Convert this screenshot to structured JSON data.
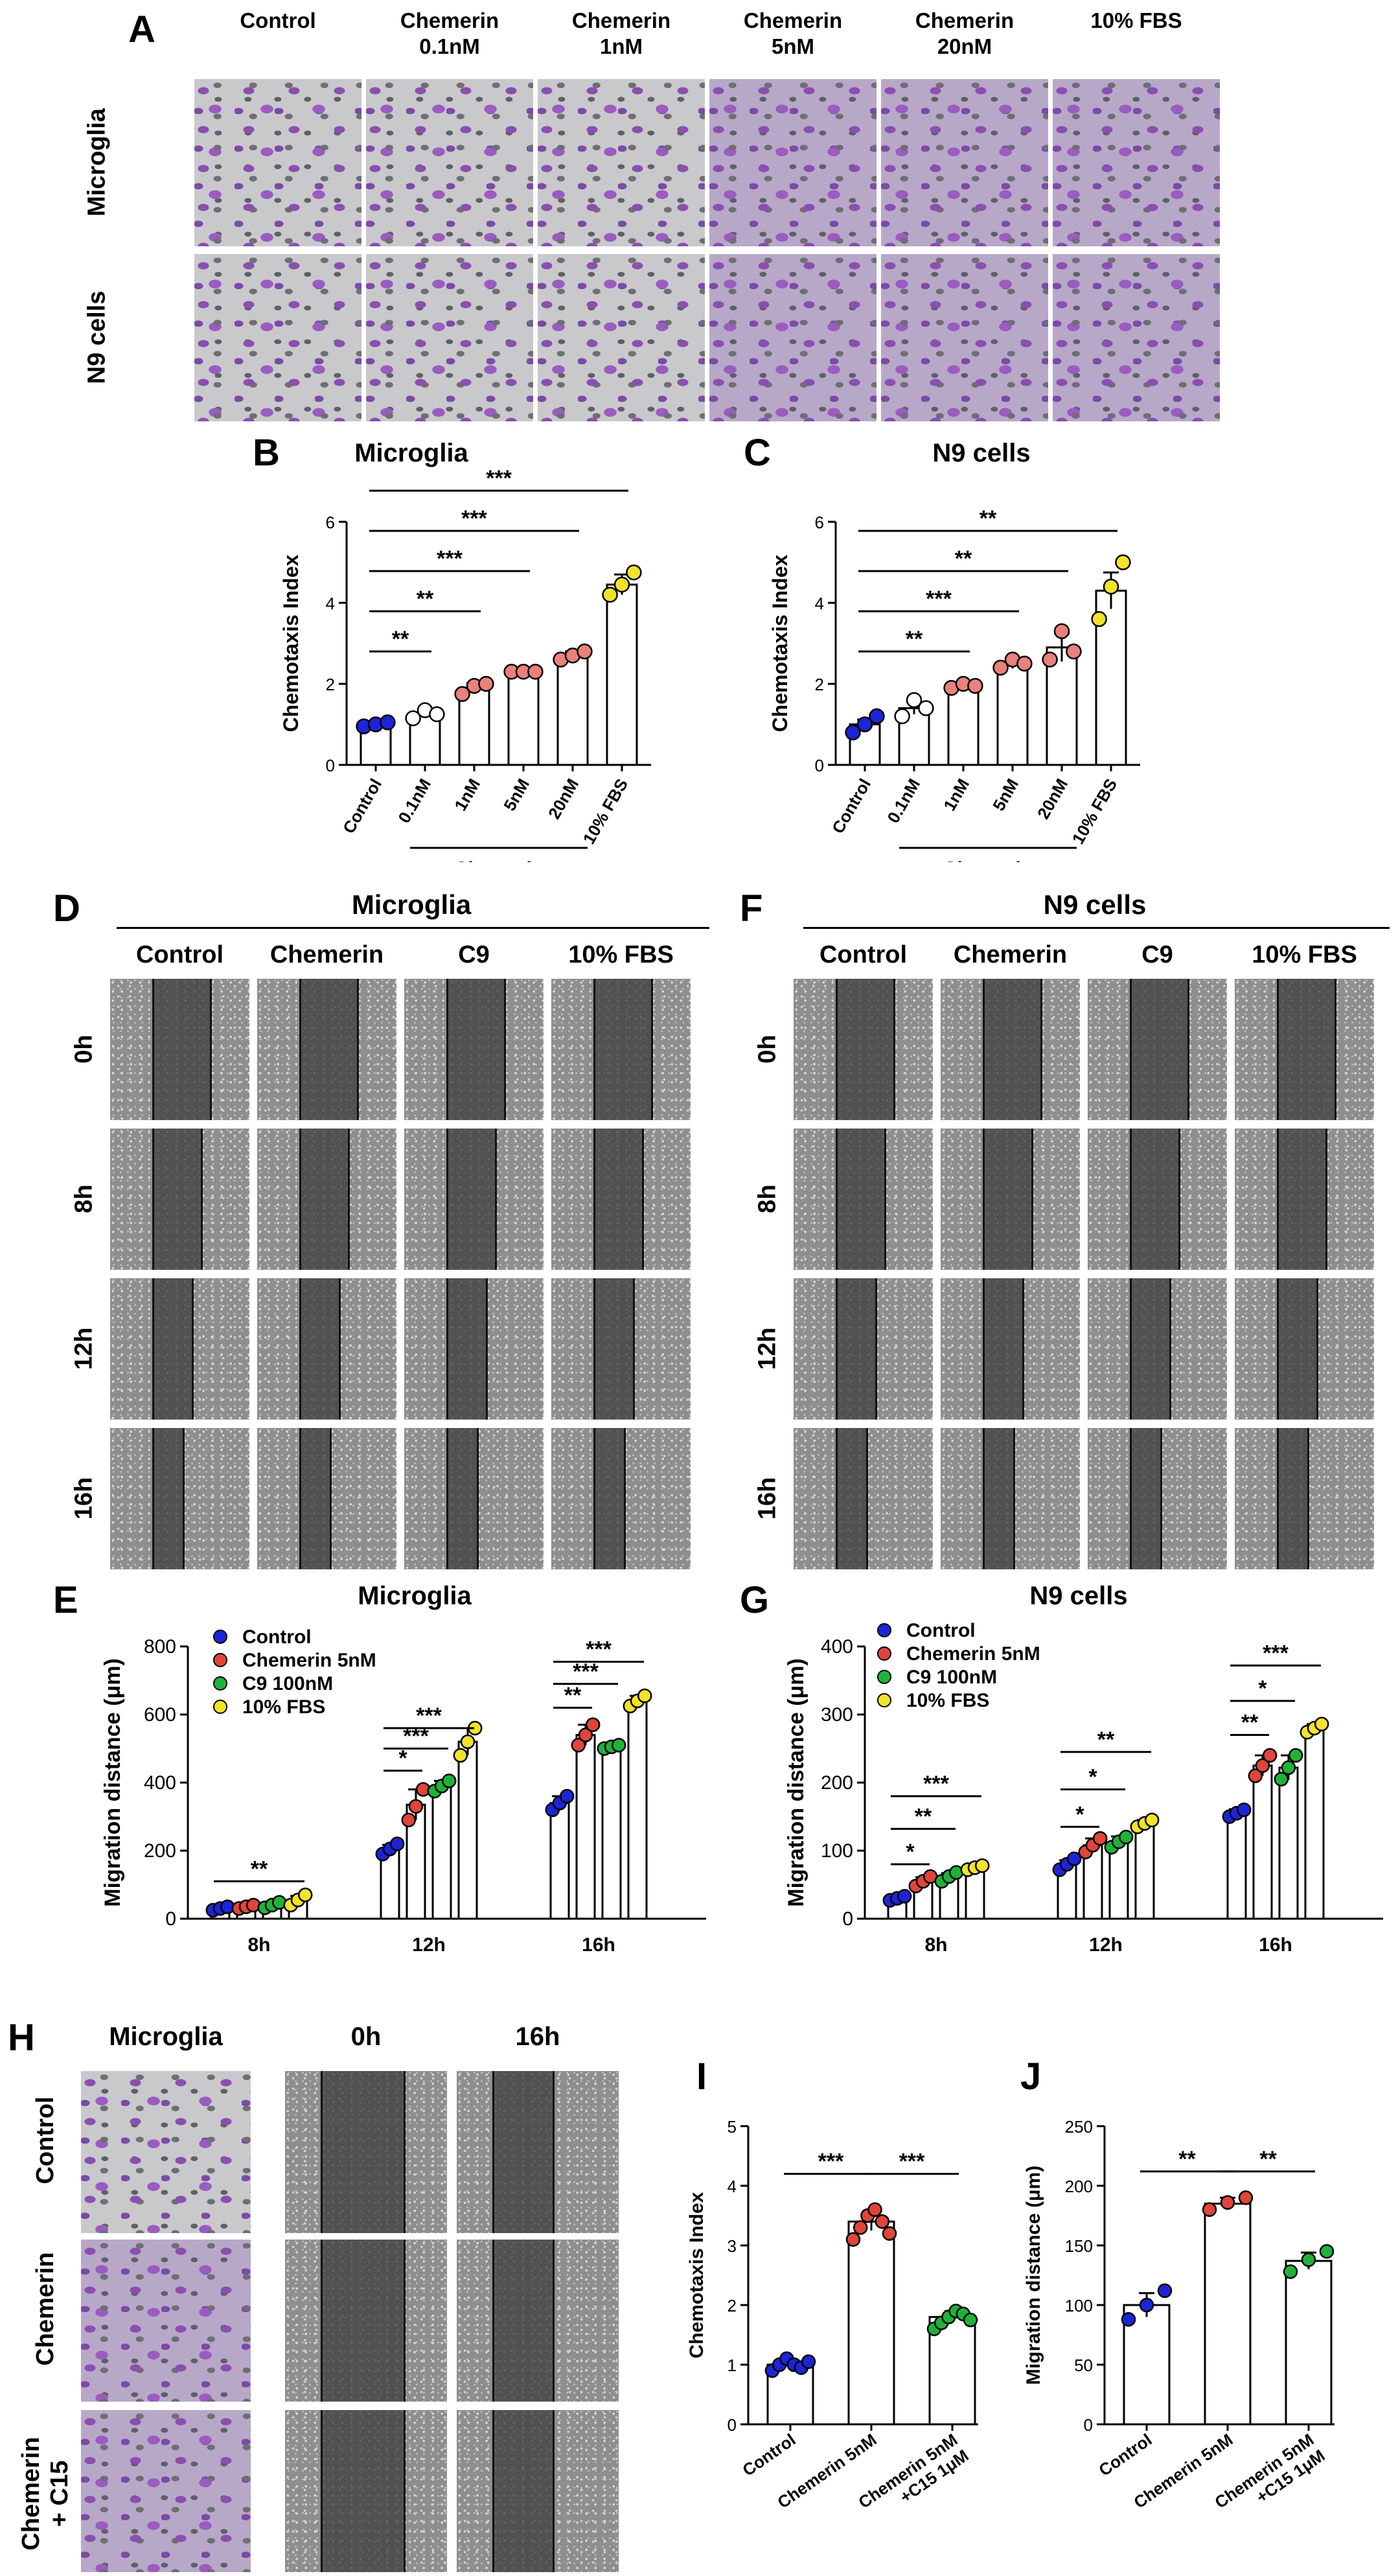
{
  "panels": {
    "A": {
      "letter": "A",
      "columns": [
        "Control",
        "Chemerin\n0.1nM",
        "Chemerin\n1nM",
        "Chemerin\n5nM",
        "Chemerin\n20nM",
        "10% FBS"
      ],
      "rows": [
        "Microglia",
        "N9 cells"
      ]
    },
    "B": {
      "letter": "B"
    },
    "C": {
      "letter": "C"
    },
    "D": {
      "letter": "D",
      "title": "Microglia",
      "columns": [
        "Control",
        "Chemerin",
        "C9",
        "10% FBS"
      ],
      "rows": [
        "0h",
        "8h",
        "12h",
        "16h"
      ]
    },
    "E": {
      "letter": "E"
    },
    "F": {
      "letter": "F",
      "title": "N9 cells",
      "columns": [
        "Control",
        "Chemerin",
        "C9",
        "10% FBS"
      ],
      "rows": [
        "0h",
        "8h",
        "12h",
        "16h"
      ]
    },
    "G": {
      "letter": "G"
    },
    "H": {
      "letter": "H",
      "columns": [
        "Microglia",
        "0h",
        "16h"
      ],
      "rows": [
        "Control",
        "Chemerin",
        "Chemerin\n+ C15"
      ]
    },
    "I": {
      "letter": "I"
    },
    "J": {
      "letter": "J"
    }
  },
  "chart_data": [
    {
      "id": "B",
      "type": "bar",
      "title": "Microglia",
      "xlabel": "",
      "ylabel": "Chemotaxis Index",
      "ylim": [
        0,
        6
      ],
      "yticks": [
        "0",
        "2",
        "4",
        "6"
      ],
      "categories": [
        "Control",
        "0.1nM",
        "1nM",
        "5nM",
        "20nM",
        "10% FBS"
      ],
      "group_label": "Chemerin",
      "values": [
        1.0,
        1.25,
        1.9,
        2.3,
        2.7,
        4.45
      ],
      "errors": [
        0.05,
        0.08,
        0.12,
        0.05,
        0.1,
        0.25
      ],
      "colors": [
        "#1c24d8",
        "#ffffff",
        "#e8827a",
        "#e8827a",
        "#e8827a",
        "#f2e32a"
      ],
      "points": [
        [
          0.95,
          1.0,
          1.05
        ],
        [
          1.15,
          1.35,
          1.25
        ],
        [
          1.75,
          1.95,
          2.0
        ],
        [
          2.3,
          2.3,
          2.3
        ],
        [
          2.6,
          2.7,
          2.8
        ],
        [
          4.2,
          4.45,
          4.75
        ]
      ],
      "significance": [
        {
          "from": 0,
          "to": 1,
          "label": "**"
        },
        {
          "from": 0,
          "to": 2,
          "label": "**"
        },
        {
          "from": 0,
          "to": 3,
          "label": "***"
        },
        {
          "from": 0,
          "to": 4,
          "label": "***"
        },
        {
          "from": 0,
          "to": 5,
          "label": "***"
        }
      ]
    },
    {
      "id": "C",
      "type": "bar",
      "title": "N9 cells",
      "xlabel": "",
      "ylabel": "Chemotaxis Index",
      "ylim": [
        0,
        6
      ],
      "yticks": [
        "0",
        "2",
        "4",
        "6"
      ],
      "categories": [
        "Control",
        "0.1nM",
        "1nM",
        "5nM",
        "20nM",
        "10% FBS"
      ],
      "group_label": "Chemerin",
      "values": [
        1.0,
        1.4,
        1.95,
        2.5,
        2.9,
        4.3
      ],
      "errors": [
        0.12,
        0.15,
        0.06,
        0.12,
        0.35,
        0.45
      ],
      "colors": [
        "#1c24d8",
        "#ffffff",
        "#e8827a",
        "#e8827a",
        "#e8827a",
        "#f2e32a"
      ],
      "points": [
        [
          0.8,
          1.0,
          1.2
        ],
        [
          1.2,
          1.6,
          1.4
        ],
        [
          1.9,
          2.0,
          1.95
        ],
        [
          2.4,
          2.6,
          2.5
        ],
        [
          2.6,
          3.3,
          2.8
        ],
        [
          3.6,
          4.4,
          5.0
        ]
      ],
      "significance": [
        {
          "from": 0,
          "to": 2,
          "label": "**"
        },
        {
          "from": 0,
          "to": 3,
          "label": "***"
        },
        {
          "from": 0,
          "to": 4,
          "label": "**"
        },
        {
          "from": 0,
          "to": 5,
          "label": "**"
        }
      ]
    },
    {
      "id": "E",
      "type": "bar",
      "title": "Microglia",
      "xlabel": "",
      "ylabel": "Migration distance (μm)",
      "ylim": [
        0,
        800
      ],
      "yticks": [
        "0",
        "200",
        "400",
        "600",
        "800"
      ],
      "categories": [
        "8h",
        "12h",
        "16h"
      ],
      "legend": [
        "Control",
        "Chemerin 5nM",
        "C9 100nM",
        "10% FBS"
      ],
      "legend_colors": [
        "#1c24d8",
        "#e0453a",
        "#1fb23a",
        "#f2e32a"
      ],
      "series": [
        {
          "name": "Control",
          "values": [
            30,
            205,
            340
          ],
          "errors": [
            5,
            12,
            20
          ],
          "points": [
            [
              25,
              30,
              35
            ],
            [
              190,
              205,
              220
            ],
            [
              320,
              340,
              360
            ]
          ]
        },
        {
          "name": "Chemerin 5nM",
          "values": [
            35,
            335,
            540
          ],
          "errors": [
            6,
            45,
            30
          ],
          "points": [
            [
              30,
              35,
              40
            ],
            [
              290,
              330,
              380
            ],
            [
              510,
              540,
              570
            ]
          ]
        },
        {
          "name": "C9 100nM",
          "values": [
            40,
            390,
            505
          ],
          "errors": [
            8,
            15,
            8
          ],
          "points": [
            [
              32,
              40,
              48
            ],
            [
              375,
              390,
              405
            ],
            [
              500,
              505,
              510
            ]
          ]
        },
        {
          "name": "10% FBS",
          "values": [
            55,
            520,
            640
          ],
          "errors": [
            12,
            40,
            15
          ],
          "points": [
            [
              40,
              55,
              70
            ],
            [
              480,
              520,
              560
            ],
            [
              625,
              640,
              655
            ]
          ]
        }
      ],
      "significance": [
        {
          "group": 0,
          "from": 0,
          "to": 3,
          "label": "**"
        },
        {
          "group": 1,
          "from": 0,
          "to": 1,
          "label": "*"
        },
        {
          "group": 1,
          "from": 0,
          "to": 2,
          "label": "***"
        },
        {
          "group": 1,
          "from": 0,
          "to": 3,
          "label": "***"
        },
        {
          "group": 2,
          "from": 0,
          "to": 1,
          "label": "**"
        },
        {
          "group": 2,
          "from": 0,
          "to": 2,
          "label": "***"
        },
        {
          "group": 2,
          "from": 0,
          "to": 3,
          "label": "***"
        }
      ]
    },
    {
      "id": "G",
      "type": "bar",
      "title": "N9 cells",
      "xlabel": "",
      "ylabel": "Migration distance (μm)",
      "ylim": [
        0,
        400
      ],
      "yticks": [
        "0",
        "100",
        "200",
        "300",
        "400"
      ],
      "categories": [
        "8h",
        "12h",
        "16h"
      ],
      "legend": [
        "Control",
        "Chemerin 5nM",
        "C9 100nM",
        "10% FBS"
      ],
      "legend_colors": [
        "#1c24d8",
        "#e0453a",
        "#1fb23a",
        "#f2e32a"
      ],
      "series": [
        {
          "name": "Control",
          "values": [
            30,
            80,
            155
          ],
          "errors": [
            3,
            6,
            6
          ],
          "points": [
            [
              27,
              30,
              33
            ],
            [
              72,
              80,
              88
            ],
            [
              150,
              155,
              160
            ]
          ]
        },
        {
          "name": "Chemerin 5nM",
          "values": [
            55,
            108,
            225
          ],
          "errors": [
            6,
            10,
            15
          ],
          "points": [
            [
              48,
              55,
              62
            ],
            [
              98,
              108,
              118
            ],
            [
              210,
              225,
              240
            ]
          ]
        },
        {
          "name": "C9 100nM",
          "values": [
            62,
            113,
            222
          ],
          "errors": [
            5,
            8,
            18
          ],
          "points": [
            [
              55,
              62,
              68
            ],
            [
              105,
              113,
              120
            ],
            [
              205,
              222,
              240
            ]
          ]
        },
        {
          "name": "10% FBS",
          "values": [
            75,
            140,
            280
          ],
          "errors": [
            3,
            5,
            6
          ],
          "points": [
            [
              72,
              75,
              78
            ],
            [
              135,
              140,
              145
            ],
            [
              274,
              280,
              286
            ]
          ]
        }
      ],
      "significance": [
        {
          "group": 0,
          "from": 0,
          "to": 1,
          "label": "*"
        },
        {
          "group": 0,
          "from": 0,
          "to": 2,
          "label": "**"
        },
        {
          "group": 0,
          "from": 0,
          "to": 3,
          "label": "***"
        },
        {
          "group": 1,
          "from": 0,
          "to": 1,
          "label": "*"
        },
        {
          "group": 1,
          "from": 0,
          "to": 2,
          "label": "*"
        },
        {
          "group": 1,
          "from": 0,
          "to": 3,
          "label": "**"
        },
        {
          "group": 2,
          "from": 0,
          "to": 1,
          "label": "**"
        },
        {
          "group": 2,
          "from": 0,
          "to": 2,
          "label": "*"
        },
        {
          "group": 2,
          "from": 0,
          "to": 3,
          "label": "***"
        }
      ]
    },
    {
      "id": "I",
      "type": "bar",
      "title": "",
      "xlabel": "",
      "ylabel": "Chemotaxis Index",
      "ylim": [
        0,
        5
      ],
      "yticks": [
        "0",
        "1",
        "2",
        "3",
        "4",
        "5"
      ],
      "categories": [
        "Control",
        "Chemerin 5nM",
        "Chemerin 5nM\n+C15 1μM"
      ],
      "values": [
        1.0,
        3.4,
        1.8
      ],
      "errors": [
        0.06,
        0.15,
        0.1
      ],
      "colors": [
        "#1c24d8",
        "#e0453a",
        "#1fb23a"
      ],
      "points": [
        [
          0.9,
          1.0,
          1.1,
          1.0,
          0.95,
          1.05
        ],
        [
          3.1,
          3.3,
          3.5,
          3.6,
          3.4,
          3.2
        ],
        [
          1.6,
          1.7,
          1.8,
          1.9,
          1.85,
          1.75
        ]
      ],
      "significance": [
        {
          "from": 0,
          "to": 1,
          "label": "***"
        },
        {
          "from": 1,
          "to": 2,
          "label": "***"
        }
      ]
    },
    {
      "id": "J",
      "type": "bar",
      "title": "",
      "xlabel": "",
      "ylabel": "Migration distance (μm)",
      "ylim": [
        0,
        250
      ],
      "yticks": [
        "0",
        "50",
        "100",
        "150",
        "200",
        "250"
      ],
      "categories": [
        "Control",
        "Chemerin 5nM",
        "Chemerin 5nM\n+C15 1μM"
      ],
      "values": [
        100,
        185,
        137
      ],
      "errors": [
        10,
        5,
        7
      ],
      "colors": [
        "#1c24d8",
        "#e0453a",
        "#1fb23a"
      ],
      "points": [
        [
          88,
          100,
          112
        ],
        [
          180,
          186,
          190
        ],
        [
          128,
          138,
          145
        ]
      ],
      "significance": [
        {
          "from": 0,
          "to": 1,
          "label": "**"
        },
        {
          "from": 1,
          "to": 2,
          "label": "**"
        }
      ]
    }
  ]
}
